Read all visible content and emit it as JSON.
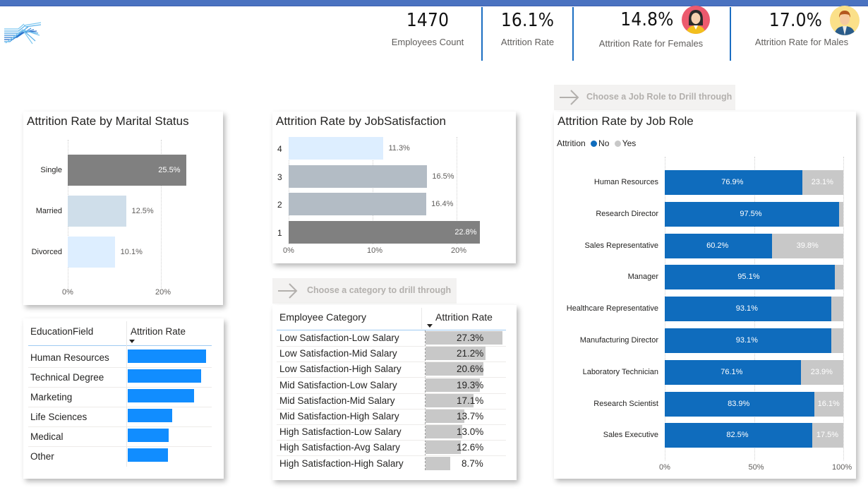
{
  "kpis": [
    {
      "value": "1470",
      "label": "Employees Count"
    },
    {
      "value": "16.1%",
      "label": "Attrition Rate"
    },
    {
      "value": "14.8%",
      "label": "Attrition Rate for Females",
      "icon": "female-avatar-icon"
    },
    {
      "value": "17.0%",
      "label": "Attrition Rate for Males",
      "icon": "male-avatar-icon"
    }
  ],
  "colors": {
    "accent": "#1b6ec2",
    "topbar": "#4a72c0",
    "no": "#0f6cbd",
    "yes": "#c8c8c8",
    "edu_bar": "#118dff",
    "dark_bar": "#808080",
    "mid_bar": "#b3bcc5",
    "light_bar": "#ddeeff",
    "married_bar": "#cfdeea",
    "table_bar": "#c8c8c8"
  },
  "drill_job_role": {
    "text": "Choose a Job Role to Drill through",
    "icon": "arrow-right-icon"
  },
  "drill_category": {
    "text": "Choose a category to drill through",
    "icon": "arrow-right-icon"
  },
  "chart_data": [
    {
      "type": "bar",
      "title": "Attrition Rate by Marital Status",
      "orientation": "horizontal",
      "categories": [
        "Single",
        "Married",
        "Divorced"
      ],
      "values": [
        25.5,
        12.5,
        10.1
      ],
      "labels": [
        "25.5%",
        "12.5%",
        "10.1%"
      ],
      "xticks": [
        "0%",
        "20%"
      ],
      "xlim": [
        0,
        26
      ],
      "grid": true
    },
    {
      "type": "bar",
      "title": "Attrition Rate by JobSatisfaction",
      "orientation": "horizontal",
      "categories": [
        "4",
        "3",
        "2",
        "1"
      ],
      "values": [
        11.3,
        16.5,
        16.4,
        22.8
      ],
      "labels": [
        "11.3%",
        "16.5%",
        "16.4%",
        "22.8%"
      ],
      "xticks": [
        "0%",
        "10%",
        "20%"
      ],
      "xlim": [
        0,
        22.8
      ],
      "grid": true
    },
    {
      "type": "bar",
      "title": "Attrition Rate by Job Role",
      "orientation": "horizontal",
      "stacked": "100%",
      "legend_title": "Attrition",
      "legend_position": "top-left",
      "categories": [
        "Human Resources",
        "Research Director",
        "Sales Representative",
        "Manager",
        "Healthcare Representative",
        "Manufacturing Director",
        "Laboratory Technician",
        "Research Scientist",
        "Sales Executive"
      ],
      "series": [
        {
          "name": "No",
          "values": [
            76.9,
            97.5,
            60.2,
            95.1,
            93.1,
            93.1,
            76.1,
            83.9,
            82.5
          ],
          "labels": [
            "76.9%",
            "97.5%",
            "60.2%",
            "95.1%",
            "93.1%",
            "93.1%",
            "76.1%",
            "83.9%",
            "82.5%"
          ]
        },
        {
          "name": "Yes",
          "values": [
            23.1,
            2.5,
            39.8,
            4.9,
            6.9,
            6.9,
            23.9,
            16.1,
            17.5
          ],
          "labels": [
            "23.1%",
            "",
            "39.8%",
            "",
            "",
            "",
            "23.9%",
            "16.1%",
            "17.5%"
          ]
        }
      ],
      "xticks": [
        "0%",
        "50%",
        "100%"
      ],
      "xlim": [
        0,
        100
      ],
      "grid": true
    },
    {
      "type": "table",
      "columns": [
        "EducationField",
        "Attrition Rate"
      ],
      "rows": [
        "Human Resources",
        "Technical Degree",
        "Marketing",
        "Life Sciences",
        "Medical",
        "Other"
      ],
      "values": [
        25.9,
        24.2,
        22.0,
        14.7,
        13.6,
        13.4
      ],
      "sorted_by": "Attrition Rate"
    },
    {
      "type": "table",
      "columns": [
        "Employee Category",
        "Attrition Rate"
      ],
      "rows": [
        "Low Satisfaction-Low Salary",
        "Low Satisfaction-Mid Salary",
        "Low Satisfaction-High Salary",
        "Mid Satisfaction-Low Salary",
        "Mid Satisfaction-Mid Salary",
        "Mid Satisfaction-High Salary",
        "High Satisfaction-Low Salary",
        "High Satisfaction-Avg Salary",
        "High Satisfaction-High Salary"
      ],
      "values": [
        27.3,
        21.2,
        20.6,
        19.3,
        17.1,
        13.7,
        13.0,
        12.6,
        8.7
      ],
      "labels": [
        "27.3%",
        "21.2%",
        "20.6%",
        "19.3%",
        "17.1%",
        "13.7%",
        "13.0%",
        "12.6%",
        "8.7%"
      ],
      "sorted_by": "Attrition Rate"
    }
  ]
}
